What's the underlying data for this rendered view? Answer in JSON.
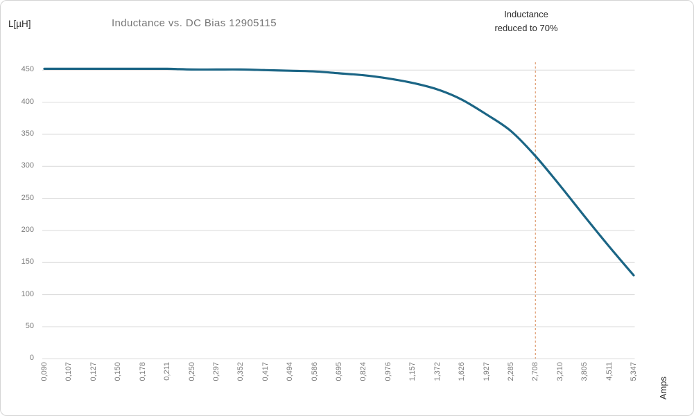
{
  "chart": {
    "title": "Inductance vs. DC Bias 12905115",
    "y_axis_label": "L[µH]",
    "x_axis_label": "Amps",
    "annotation": {
      "line1": "Inductance",
      "line2": "reduced to 70%"
    }
  },
  "chart_data": {
    "type": "line",
    "title": "Inductance vs. DC Bias 12905115",
    "xlabel": "Amps",
    "ylabel": "L[µH]",
    "categories": [
      "0,090",
      "0,107",
      "0,127",
      "0,150",
      "0,178",
      "0,211",
      "0,250",
      "0,297",
      "0,352",
      "0,417",
      "0,494",
      "0,586",
      "0,695",
      "0,824",
      "0,976",
      "1,157",
      "1,372",
      "1,626",
      "1,927",
      "2,285",
      "2,708",
      "3,210",
      "3,805",
      "4,511",
      "5,347"
    ],
    "series": [
      {
        "name": "Inductance",
        "values": [
          452,
          452,
          452,
          452,
          452,
          452,
          451,
          451,
          451,
          450,
          449,
          448,
          445,
          442,
          437,
          430,
          420,
          404,
          381,
          355,
          316,
          270,
          222,
          175,
          130
        ]
      }
    ],
    "ylim": [
      0,
      450
    ],
    "yticks": [
      0,
      50,
      100,
      150,
      200,
      250,
      300,
      350,
      400,
      450
    ],
    "ytick_labels": [
      "0",
      "50",
      "100",
      "150",
      "200",
      "250",
      "300",
      "350",
      "400",
      "450"
    ],
    "grid": "horizontal",
    "legend": "none",
    "annotation": {
      "text": "Inductance reduced to 70%",
      "x_category": "2,708",
      "marker": "dashed-vertical-line"
    },
    "colors": {
      "line": "#1b6585",
      "dashed_line": "#e2a47c",
      "grid": "#d9d9d9",
      "title_text": "#767676",
      "tick_text": "#7b7b7b",
      "dark_text": "#2f2f2f"
    }
  }
}
